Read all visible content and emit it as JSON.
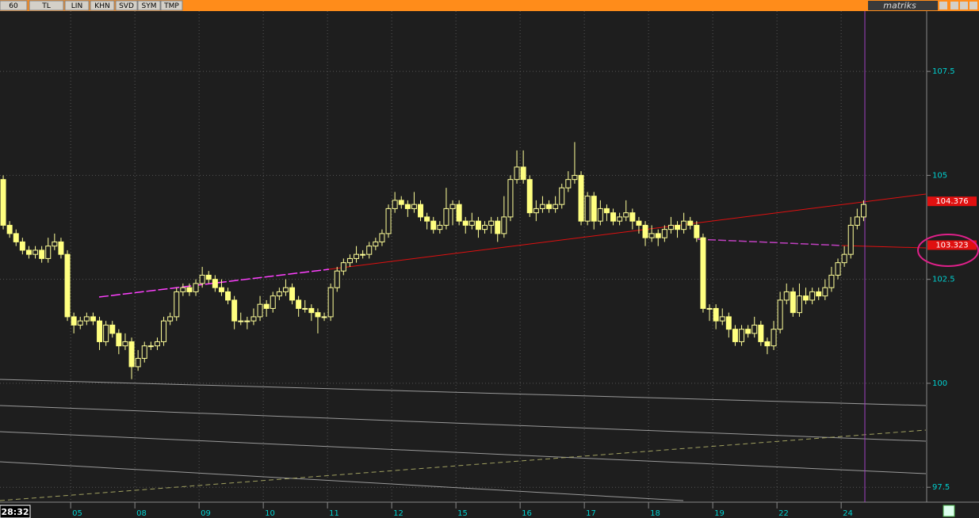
{
  "toolbar": [
    "60",
    "TL",
    "LIN",
    "KHN",
    "SVD",
    "SYM",
    "TMP"
  ],
  "brand": "matriks",
  "time": "28:32",
  "chart_data": {
    "type": "candlestick",
    "up_color": "#ffff99",
    "down_color": "#ffff80",
    "grid": true,
    "xlim": [
      -0.5,
      143.7
    ],
    "ylim": [
      97.18,
      108.95
    ],
    "yticks": [
      97.5,
      100,
      102.5,
      105,
      107.5
    ],
    "xticks": [
      {
        "value": 11,
        "label": "05"
      },
      {
        "value": 21,
        "label": "08"
      },
      {
        "value": 31,
        "label": "09"
      },
      {
        "value": 41,
        "label": "10"
      },
      {
        "value": 51,
        "label": "11"
      },
      {
        "value": 61,
        "label": "12"
      },
      {
        "value": 71,
        "label": "15"
      },
      {
        "value": 81,
        "label": "16"
      },
      {
        "value": 91,
        "label": "17"
      },
      {
        "value": 101,
        "label": "18"
      },
      {
        "value": 111,
        "label": "19"
      },
      {
        "value": 121,
        "label": "22"
      },
      {
        "value": 131,
        "label": "24"
      }
    ],
    "price_labels": [
      104.376,
      103.323
    ],
    "open": [
      104.9,
      103.8,
      103.6,
      103.4,
      103.2,
      103.1,
      103.2,
      103.0,
      103.3,
      103.4,
      103.1,
      101.6,
      101.4,
      101.5,
      101.6,
      101.5,
      101.0,
      101.4,
      101.2,
      100.9,
      101.0,
      100.4,
      100.6,
      100.9,
      100.9,
      101.0,
      101.5,
      101.6,
      102.2,
      102.3,
      102.2,
      102.4,
      102.6,
      102.5,
      102.3,
      102.2,
      102.0,
      101.5,
      101.5,
      101.5,
      101.6,
      101.9,
      101.8,
      102.1,
      102.2,
      102.3,
      102.0,
      101.8,
      101.8,
      101.7,
      101.6,
      101.6,
      102.3,
      102.7,
      102.9,
      103.0,
      103.1,
      103.1,
      103.3,
      103.4,
      103.6,
      104.2,
      104.4,
      104.3,
      104.2,
      104.3,
      104.0,
      103.9,
      103.7,
      103.8,
      104.2,
      104.3,
      103.9,
      103.8,
      103.9,
      103.7,
      103.8,
      103.9,
      103.6,
      104.0,
      104.9,
      105.2,
      104.9,
      104.1,
      104.2,
      104.3,
      104.2,
      104.3,
      104.7,
      104.9,
      105.0,
      103.9,
      104.5,
      103.9,
      104.2,
      104.1,
      103.9,
      104.0,
      104.1,
      103.9,
      103.8,
      103.5,
      103.6,
      103.5,
      103.7,
      103.8,
      103.7,
      103.9,
      103.8,
      103.5,
      101.8,
      101.8,
      101.5,
      101.6,
      101.3,
      101.0,
      101.3,
      101.2,
      101.4,
      101.0,
      100.9,
      101.3,
      102.0,
      102.2,
      101.7,
      102.1,
      102.0,
      102.2,
      102.1,
      102.3,
      102.6,
      102.9,
      103.1,
      103.8,
      104.0
    ],
    "high": [
      105.0,
      103.9,
      103.7,
      103.5,
      103.3,
      103.3,
      103.3,
      103.5,
      103.6,
      103.5,
      103.2,
      101.7,
      101.6,
      101.7,
      101.7,
      101.6,
      101.5,
      101.5,
      101.3,
      101.2,
      101.1,
      100.8,
      101.0,
      101.0,
      101.1,
      101.6,
      101.7,
      102.3,
      102.4,
      102.4,
      102.5,
      102.8,
      102.7,
      102.6,
      102.5,
      102.3,
      102.1,
      101.7,
      101.6,
      101.8,
      102.1,
      102.0,
      102.2,
      102.3,
      102.5,
      102.4,
      102.1,
      102.0,
      101.9,
      101.8,
      101.7,
      102.4,
      102.8,
      103.0,
      103.1,
      103.3,
      103.2,
      103.4,
      103.5,
      103.7,
      104.3,
      104.6,
      104.5,
      104.4,
      104.6,
      104.4,
      104.1,
      104.0,
      103.9,
      104.7,
      104.4,
      104.4,
      104.0,
      104.1,
      104.0,
      103.9,
      104.0,
      104.0,
      104.5,
      105.0,
      105.6,
      105.6,
      105.0,
      104.4,
      104.5,
      104.4,
      104.5,
      104.8,
      105.1,
      105.8,
      105.1,
      104.6,
      104.6,
      104.4,
      104.3,
      104.2,
      104.1,
      104.4,
      104.2,
      104.0,
      103.9,
      103.8,
      103.7,
      103.8,
      104.0,
      103.9,
      104.1,
      104.0,
      103.9,
      103.6,
      101.9,
      101.9,
      101.8,
      101.7,
      101.4,
      101.4,
      101.4,
      101.6,
      101.5,
      101.1,
      101.5,
      102.2,
      102.4,
      102.3,
      102.4,
      102.3,
      102.3,
      102.3,
      102.5,
      102.8,
      103.0,
      103.3,
      104.0,
      104.2,
      104.4
    ],
    "low": [
      103.7,
      103.5,
      103.3,
      103.1,
      103.0,
      103.0,
      102.9,
      102.9,
      103.2,
      103.0,
      101.5,
      101.2,
      101.3,
      101.4,
      101.4,
      100.8,
      100.9,
      101.1,
      100.7,
      100.8,
      100.1,
      100.3,
      100.5,
      100.8,
      100.8,
      100.9,
      101.4,
      101.5,
      102.1,
      102.1,
      102.1,
      102.3,
      102.4,
      102.2,
      102.1,
      101.9,
      101.3,
      101.4,
      101.3,
      101.4,
      101.5,
      101.6,
      101.7,
      102.0,
      102.1,
      101.9,
      101.6,
      101.7,
      101.5,
      101.2,
      101.5,
      101.5,
      102.2,
      102.6,
      102.8,
      102.9,
      103.0,
      103.0,
      103.2,
      103.3,
      103.5,
      104.1,
      104.2,
      104.0,
      104.1,
      103.9,
      103.7,
      103.6,
      103.6,
      103.7,
      103.8,
      103.8,
      103.6,
      103.7,
      103.5,
      103.6,
      103.6,
      103.4,
      103.5,
      103.9,
      104.8,
      104.8,
      104.0,
      103.9,
      104.1,
      104.1,
      104.1,
      104.2,
      104.6,
      104.8,
      103.8,
      103.8,
      103.7,
      103.8,
      103.9,
      103.8,
      103.8,
      103.9,
      103.7,
      103.6,
      103.3,
      103.4,
      103.3,
      103.4,
      103.6,
      103.5,
      103.6,
      103.7,
      103.4,
      101.7,
      101.5,
      101.3,
      101.4,
      101.1,
      100.9,
      100.9,
      101.1,
      101.1,
      100.9,
      100.7,
      100.8,
      101.2,
      101.9,
      101.6,
      101.6,
      101.9,
      101.9,
      102.0,
      102.0,
      102.2,
      102.5,
      102.8,
      103.0,
      103.7,
      103.9
    ],
    "close": [
      103.8,
      103.6,
      103.4,
      103.2,
      103.1,
      103.2,
      103.0,
      103.3,
      103.4,
      103.1,
      101.6,
      101.4,
      101.5,
      101.6,
      101.5,
      101.0,
      101.4,
      101.2,
      100.9,
      101.0,
      100.4,
      100.6,
      100.9,
      100.9,
      101.0,
      101.5,
      101.6,
      102.2,
      102.3,
      102.2,
      102.4,
      102.6,
      102.5,
      102.3,
      102.2,
      102.0,
      101.5,
      101.5,
      101.5,
      101.6,
      101.9,
      101.8,
      102.1,
      102.2,
      102.3,
      102.0,
      101.8,
      101.8,
      101.7,
      101.6,
      101.6,
      102.3,
      102.7,
      102.9,
      103.0,
      103.1,
      103.1,
      103.3,
      103.4,
      103.6,
      104.2,
      104.4,
      104.3,
      104.2,
      104.3,
      104.0,
      103.9,
      103.7,
      103.8,
      104.2,
      104.3,
      103.9,
      103.8,
      103.9,
      103.7,
      103.8,
      103.9,
      103.6,
      104.0,
      104.9,
      105.2,
      104.9,
      104.1,
      104.2,
      104.3,
      104.2,
      104.3,
      104.7,
      104.9,
      105.0,
      103.9,
      104.5,
      103.9,
      104.2,
      104.1,
      103.9,
      104.0,
      104.1,
      103.9,
      103.8,
      103.5,
      103.6,
      103.5,
      103.7,
      103.8,
      103.7,
      103.9,
      103.8,
      103.5,
      101.8,
      101.8,
      101.5,
      101.6,
      101.3,
      101.0,
      101.3,
      101.2,
      101.4,
      101.0,
      100.9,
      101.3,
      102.0,
      102.2,
      101.7,
      102.1,
      102.0,
      102.2,
      102.1,
      102.3,
      102.6,
      102.9,
      103.1,
      103.8,
      104.0,
      104.3
    ]
  }
}
